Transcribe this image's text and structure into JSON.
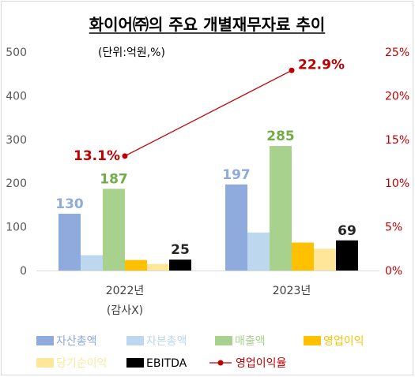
{
  "chart_data": {
    "type": "bar",
    "title": "화이어㈜의 주요 개별재무자료 추이",
    "unit_note": "(단위:억원,%)",
    "categories": [
      "2022년",
      "2023년"
    ],
    "category_notes": [
      "(감사X)",
      ""
    ],
    "ylim": [
      0,
      500
    ],
    "yticks": [
      "0",
      "100",
      "200",
      "300",
      "400",
      "500"
    ],
    "y2lim": [
      0,
      25
    ],
    "y2ticks": [
      "0%",
      "5%",
      "10%",
      "15%",
      "20%",
      "25%"
    ],
    "series": [
      {
        "name": "자산총액",
        "values": [
          130,
          197
        ],
        "color": "#8faadc",
        "labels": [
          "130",
          "197"
        ],
        "label_color": "#8faadc"
      },
      {
        "name": "자본총액",
        "values": [
          35,
          87
        ],
        "color": "#bdd7ee",
        "labels": [
          "",
          ""
        ],
        "label_color": "#bdd7ee"
      },
      {
        "name": "매출액",
        "values": [
          187,
          285
        ],
        "color": "#a9d18e",
        "labels": [
          "187",
          "285"
        ],
        "label_color": "#70ad47"
      },
      {
        "name": "영업이익",
        "values": [
          24,
          64
        ],
        "color": "#ffc000",
        "labels": [
          "",
          ""
        ],
        "label_color": "#ffc000"
      },
      {
        "name": "당기순이익",
        "values": [
          15,
          50
        ],
        "color": "#ffe699",
        "labels": [
          "",
          ""
        ],
        "label_color": "#ffe699"
      },
      {
        "name": "EBITDA",
        "values": [
          25,
          69
        ],
        "color": "#000000",
        "labels": [
          "25",
          "69"
        ],
        "label_color": "#262626"
      }
    ],
    "line_series": {
      "name": "영업이익율",
      "axis": "right",
      "values": [
        13.1,
        22.9
      ],
      "labels": [
        "13.1%",
        "22.9%"
      ],
      "color": "#c00000"
    },
    "legend_position": "bottom",
    "grid": false
  }
}
